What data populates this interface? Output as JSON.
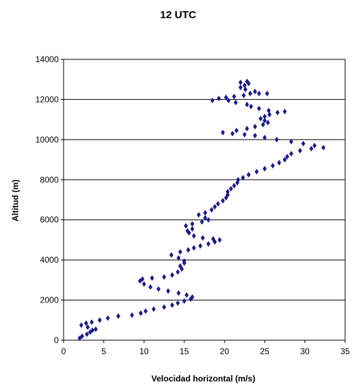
{
  "chart_data": {
    "type": "scatter",
    "title": "12 UTC",
    "xlabel": "Velocidad horizontal (m/s)",
    "ylabel": "Altitud (m)",
    "xlim": [
      0,
      35
    ],
    "ylim": [
      0,
      14000
    ],
    "xticks": [
      "0",
      "5",
      "10",
      "15",
      "20",
      "25",
      "30",
      "35"
    ],
    "yticks": [
      "0",
      "2000",
      "4000",
      "6000",
      "8000",
      "10000",
      "12000",
      "14000"
    ],
    "grid": "horizontal",
    "legend": "none",
    "marker": "diamond",
    "color": "#1a1a8c",
    "points": [
      [
        2.0,
        100
      ],
      [
        2.3,
        200
      ],
      [
        2.9,
        300
      ],
      [
        3.3,
        400
      ],
      [
        3.6,
        500
      ],
      [
        4.0,
        550
      ],
      [
        3.0,
        650
      ],
      [
        2.2,
        750
      ],
      [
        2.8,
        850
      ],
      [
        3.5,
        900
      ],
      [
        4.5,
        1000
      ],
      [
        5.5,
        1100
      ],
      [
        6.8,
        1200
      ],
      [
        8.5,
        1250
      ],
      [
        9.6,
        1350
      ],
      [
        10.2,
        1450
      ],
      [
        11.2,
        1550
      ],
      [
        12.5,
        1650
      ],
      [
        13.5,
        1750
      ],
      [
        14.2,
        1850
      ],
      [
        15.0,
        1950
      ],
      [
        15.8,
        2050
      ],
      [
        16.0,
        2150
      ],
      [
        15.3,
        2250
      ],
      [
        14.3,
        2350
      ],
      [
        13.0,
        2450
      ],
      [
        11.8,
        2550
      ],
      [
        10.8,
        2650
      ],
      [
        10.0,
        2800
      ],
      [
        9.5,
        2950
      ],
      [
        9.8,
        3050
      ],
      [
        11.0,
        3100
      ],
      [
        12.5,
        3150
      ],
      [
        13.5,
        3250
      ],
      [
        14.2,
        3400
      ],
      [
        14.7,
        3550
      ],
      [
        14.5,
        3700
      ],
      [
        15.0,
        3850
      ],
      [
        15.0,
        3950
      ],
      [
        14.3,
        4100
      ],
      [
        13.4,
        4250
      ],
      [
        14.5,
        4400
      ],
      [
        15.5,
        4500
      ],
      [
        16.2,
        4600
      ],
      [
        17.0,
        4700
      ],
      [
        18.0,
        4800
      ],
      [
        18.8,
        4900
      ],
      [
        19.4,
        5000
      ],
      [
        18.6,
        5050
      ],
      [
        17.3,
        5100
      ],
      [
        16.2,
        5200
      ],
      [
        15.6,
        5350
      ],
      [
        15.4,
        5450
      ],
      [
        16.0,
        5550
      ],
      [
        15.2,
        5700
      ],
      [
        16.0,
        5800
      ],
      [
        17.2,
        5900
      ],
      [
        18.0,
        6000
      ],
      [
        17.6,
        6100
      ],
      [
        16.8,
        6250
      ],
      [
        17.6,
        6350
      ],
      [
        18.4,
        6500
      ],
      [
        18.8,
        6650
      ],
      [
        19.2,
        6800
      ],
      [
        19.8,
        6950
      ],
      [
        20.2,
        7100
      ],
      [
        20.4,
        7250
      ],
      [
        20.4,
        7400
      ],
      [
        20.8,
        7550
      ],
      [
        21.2,
        7700
      ],
      [
        21.6,
        7850
      ],
      [
        21.7,
        8000
      ],
      [
        22.3,
        8100
      ],
      [
        23.0,
        8250
      ],
      [
        24.0,
        8400
      ],
      [
        25.0,
        8550
      ],
      [
        26.0,
        8700
      ],
      [
        26.8,
        8850
      ],
      [
        27.5,
        9000
      ],
      [
        27.8,
        9150
      ],
      [
        28.3,
        9300
      ],
      [
        29.4,
        9450
      ],
      [
        30.8,
        9550
      ],
      [
        32.3,
        9600
      ],
      [
        31.2,
        9700
      ],
      [
        29.8,
        9800
      ],
      [
        28.3,
        9900
      ],
      [
        26.5,
        10000
      ],
      [
        25.0,
        10100
      ],
      [
        23.8,
        10200
      ],
      [
        22.5,
        10250
      ],
      [
        21.0,
        10300
      ],
      [
        19.8,
        10350
      ],
      [
        21.5,
        10450
      ],
      [
        22.8,
        10550
      ],
      [
        23.8,
        10650
      ],
      [
        24.8,
        10750
      ],
      [
        25.4,
        10850
      ],
      [
        25.0,
        10950
      ],
      [
        24.5,
        11050
      ],
      [
        25.0,
        11150
      ],
      [
        25.6,
        11250
      ],
      [
        26.6,
        11350
      ],
      [
        27.5,
        11400
      ],
      [
        25.5,
        11450
      ],
      [
        24.3,
        11550
      ],
      [
        23.3,
        11650
      ],
      [
        22.8,
        11750
      ],
      [
        21.4,
        11850
      ],
      [
        20.5,
        11950
      ],
      [
        19.3,
        12050
      ],
      [
        18.5,
        11950
      ],
      [
        20.2,
        12100
      ],
      [
        21.2,
        12150
      ],
      [
        22.4,
        12200
      ],
      [
        23.2,
        12300
      ],
      [
        24.3,
        12300
      ],
      [
        25.3,
        12300
      ],
      [
        23.8,
        12400
      ],
      [
        22.6,
        12500
      ],
      [
        22.0,
        12600
      ],
      [
        22.5,
        12700
      ],
      [
        23.0,
        12800
      ],
      [
        22.0,
        12850
      ],
      [
        22.8,
        12900
      ]
    ]
  }
}
